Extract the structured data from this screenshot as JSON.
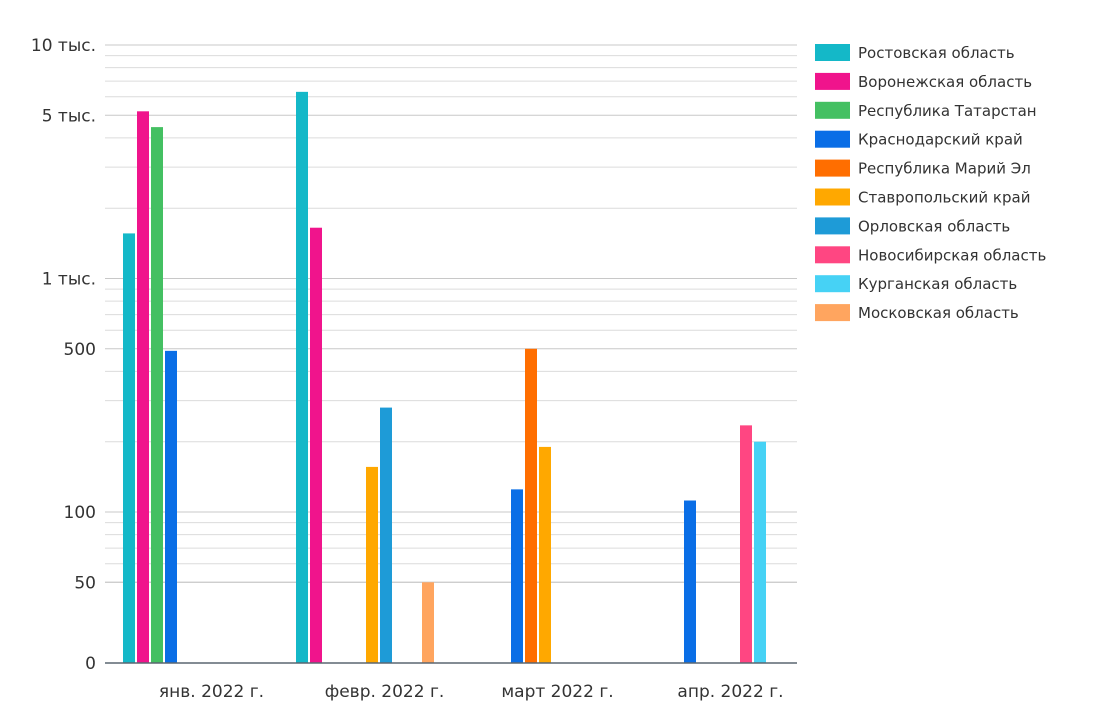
{
  "chart_data": {
    "type": "bar",
    "title": "",
    "xlabel": "",
    "ylabel": "",
    "y_scale": "log",
    "grid": true,
    "legend_position": "right",
    "categories": [
      "янв. 2022 г.",
      "февр. 2022 г.",
      "март 2022 г.",
      "апр. 2022 г."
    ],
    "y_ticks": [
      {
        "value": 0,
        "label": "0"
      },
      {
        "value": 50,
        "label": "50"
      },
      {
        "value": 100,
        "label": "100"
      },
      {
        "value": 500,
        "label": "500"
      },
      {
        "value": 1000,
        "label": "1 тыс."
      },
      {
        "value": 5000,
        "label": "5 тыс."
      },
      {
        "value": 10000,
        "label": "10 тыс."
      }
    ],
    "series": [
      {
        "name": "Ростовская область",
        "color": "#14B8C8",
        "values": [
          1560,
          6300,
          null,
          null
        ]
      },
      {
        "name": "Воронежская область",
        "color": "#F0148C",
        "values": [
          5200,
          1650,
          null,
          null
        ]
      },
      {
        "name": "Республика Татарстан",
        "color": "#44C062",
        "values": [
          4450,
          null,
          null,
          null
        ]
      },
      {
        "name": "Краснодарский край",
        "color": "#0A6EE6",
        "values": [
          490,
          null,
          125,
          112
        ]
      },
      {
        "name": "Республика Марий Эл",
        "color": "#FF6E00",
        "values": [
          null,
          null,
          500,
          null
        ]
      },
      {
        "name": "Ставропольский край",
        "color": "#FFA800",
        "values": [
          null,
          156,
          190,
          null
        ]
      },
      {
        "name": "Орловская область",
        "color": "#1E9BD7",
        "values": [
          null,
          280,
          null,
          null
        ]
      },
      {
        "name": "Новосибирская область",
        "color": "#FF4682",
        "values": [
          null,
          null,
          null,
          235
        ]
      },
      {
        "name": "Курганская область",
        "color": "#46D2F5",
        "values": [
          null,
          null,
          null,
          200
        ]
      },
      {
        "name": "Московская область",
        "color": "#FFA55F",
        "values": [
          null,
          50,
          null,
          null
        ]
      }
    ]
  }
}
